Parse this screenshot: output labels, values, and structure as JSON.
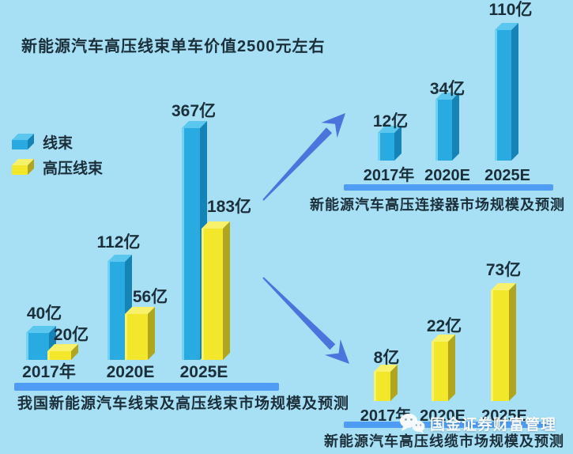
{
  "title": "新能源汽车高压线束单车价值2500元左右",
  "legend": {
    "items": [
      {
        "label": "线束",
        "swatch": "blue"
      },
      {
        "label": "高压线束",
        "swatch": "yellow"
      }
    ]
  },
  "watermark": {
    "icon": "wechat-icon",
    "label": "国金证券财富管理"
  },
  "colors": {
    "background": "#A7DFF4",
    "text": "#1B2F3A",
    "bar_blue_front": "#29ABE2",
    "bar_blue_top": "#5BC6EE",
    "bar_blue_side": "#1583B5",
    "bar_blue_edge": "#7FD8F4",
    "bar_yellow_front": "#F2E72B",
    "bar_yellow_top": "#F7F16C",
    "bar_yellow_side": "#AFA51F",
    "bar_yellow_edge": "#F9F578",
    "divider": "#4F9CF4",
    "arrow": "#4B74DC",
    "watermark_text": "#FFFFFF"
  },
  "chart_data": [
    {
      "id": "harness_main",
      "type": "bar",
      "title": "我国新能源汽车线束及高压线束市场规模及预测",
      "unit": "亿",
      "categories": [
        "2017年",
        "2020E",
        "2025E"
      ],
      "series": [
        {
          "name": "线束",
          "color_key": "blue",
          "values": [
            40,
            112,
            367
          ],
          "labels": [
            "40亿",
            "112亿",
            "367亿"
          ]
        },
        {
          "name": "高压线束",
          "color_key": "yellow",
          "values": [
            20,
            56,
            183
          ],
          "labels": [
            "20亿",
            "56亿",
            "183亿"
          ]
        }
      ],
      "legend_position": "left",
      "axes": "none",
      "grid": false
    },
    {
      "id": "connector",
      "type": "bar",
      "title": "新能源汽车高压连接器市场规模及预测",
      "unit": "亿",
      "categories": [
        "2017年",
        "2020E",
        "2025E"
      ],
      "series": [
        {
          "color_key": "blue",
          "values": [
            12,
            34,
            110
          ],
          "labels": [
            "12亿",
            "34亿",
            "110亿"
          ]
        }
      ],
      "axes": "none",
      "grid": false
    },
    {
      "id": "cable",
      "type": "bar",
      "title": "新能源汽车高压线缆市场规模及预测",
      "unit": "亿",
      "categories": [
        "2017年",
        "2020E",
        "2025E"
      ],
      "series": [
        {
          "color_key": "yellow",
          "values": [
            8,
            22,
            73
          ],
          "labels": [
            "8亿",
            "22亿",
            "73亿"
          ]
        }
      ],
      "axes": "none",
      "grid": false
    }
  ]
}
